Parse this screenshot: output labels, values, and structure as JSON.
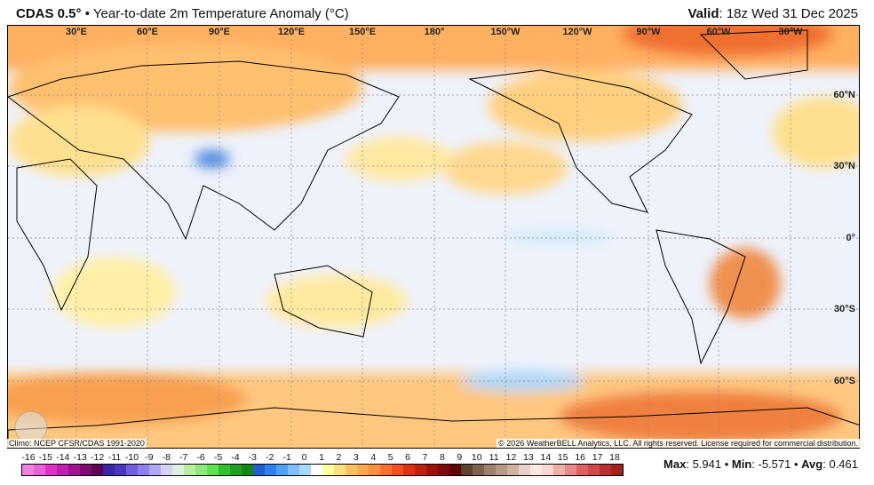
{
  "header": {
    "model": "CDAS 0.5°",
    "separator": "•",
    "title": "Year-to-date 2m Temperature Anomaly (°C)",
    "valid_label": "Valid",
    "valid_value": ": 18z Wed 31 Dec 2025"
  },
  "map": {
    "lon_labels": [
      "30°E",
      "60°E",
      "90°E",
      "120°E",
      "150°E",
      "180°",
      "150°W",
      "120°W",
      "90°W",
      "60°W",
      "30°W"
    ],
    "lat_labels": [
      "60°N",
      "30°N",
      "0°",
      "30°S",
      "60°S"
    ],
    "logo_text": "WeatherBELL"
  },
  "footer": {
    "climo": "Climo: NCEP CFSR/CDAS 1991-2020",
    "copyright": "© 2026 WeatherBELL Analytics, LLC. All rights reserved. License required for commercial distribution."
  },
  "colorbar": {
    "labels": [
      "-16",
      "-15",
      "-14",
      "-13",
      "-12",
      "-11",
      "-10",
      "-9",
      "-8",
      "-7",
      "-6",
      "-5",
      "-4",
      "-3",
      "-2",
      "-1",
      "0",
      "1",
      "2",
      "3",
      "4",
      "5",
      "6",
      "7",
      "8",
      "9",
      "10",
      "11",
      "12",
      "13",
      "14",
      "15",
      "16",
      "17",
      "18"
    ],
    "colors": [
      "#f080e0",
      "#e860d8",
      "#e030c8",
      "#c020b0",
      "#a01090",
      "#800870",
      "#600050",
      "#3828a8",
      "#4838c0",
      "#7060e0",
      "#9080f0",
      "#b0a8f8",
      "#d8d0f8",
      "#e0f0e0",
      "#b8f0a0",
      "#90e880",
      "#60e050",
      "#30c030",
      "#20a020",
      "#108810",
      "#2060d0",
      "#3080f0",
      "#50a0f8",
      "#80c0f8",
      "#a8d8f8",
      "#ffffff",
      "#ffffa0",
      "#ffe080",
      "#ffc060",
      "#ffa850",
      "#ff9040",
      "#ff7030",
      "#f05020",
      "#e03010",
      "#c02010",
      "#a01008",
      "#800808",
      "#600000",
      "#604030",
      "#806050",
      "#a08070",
      "#b89888",
      "#d0b0a0",
      "#e8d0c8",
      "#f8e8e0",
      "#f8d8d0",
      "#f0b0a8",
      "#e88888",
      "#e06060",
      "#d04848",
      "#b83030",
      "#a02020"
    ]
  },
  "stats": {
    "max_label": "Max",
    "max_value": ": 5.941",
    "sep": " • ",
    "min_label": "Min",
    "min_value": ": -5.571",
    "avg_label": "Avg",
    "avg_value": ": 0.461"
  }
}
